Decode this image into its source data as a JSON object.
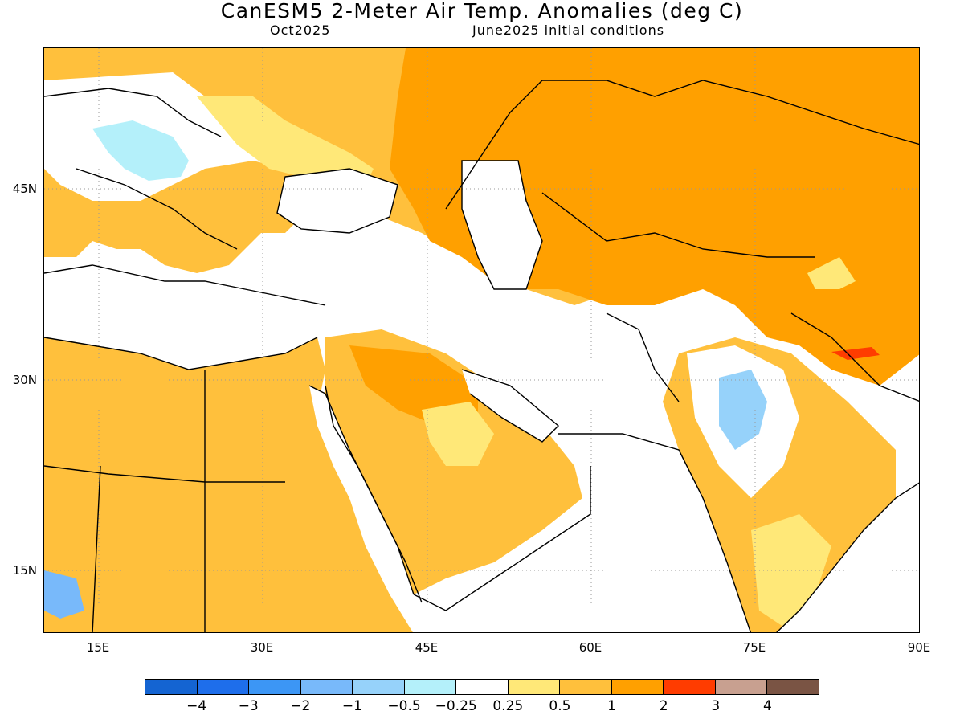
{
  "header": {
    "title": "CanESM5 2-Meter Air Temp. Anomalies (deg C)",
    "valid_month": "Oct2025",
    "init": "June2025 initial conditions"
  },
  "map": {
    "region": "Middle East / South-West Asia",
    "lon_range": [
      10,
      90
    ],
    "lat_range": [
      10,
      55
    ],
    "y_ticks": [
      {
        "label": "45N",
        "lat": 45
      },
      {
        "label": "30N",
        "lat": 30
      },
      {
        "label": "15N",
        "lat": 15
      }
    ],
    "x_ticks": [
      {
        "label": "15E",
        "lon": 15
      },
      {
        "label": "30E",
        "lon": 30
      },
      {
        "label": "45E",
        "lon": 45
      },
      {
        "label": "60E",
        "lon": 60
      },
      {
        "label": "75E",
        "lon": 75
      },
      {
        "label": "90E",
        "lon": 90
      }
    ],
    "gridlines": "dotted",
    "ocean_fill": "#ffffff"
  },
  "colorbar": {
    "colors": [
      "#1464d2",
      "#1e6eeb",
      "#3c96f5",
      "#78b9fa",
      "#96d2fa",
      "#b4f0fa",
      "#ffffff",
      "#ffe878",
      "#ffc03c",
      "#ffa000",
      "#ff3c00",
      "#c8a090",
      "#7a5444"
    ],
    "labels": [
      "−4",
      "−3",
      "−2",
      "−1",
      "−0.5",
      "−0.25",
      "0.25",
      "0.5",
      "1",
      "2",
      "3",
      "4"
    ]
  }
}
